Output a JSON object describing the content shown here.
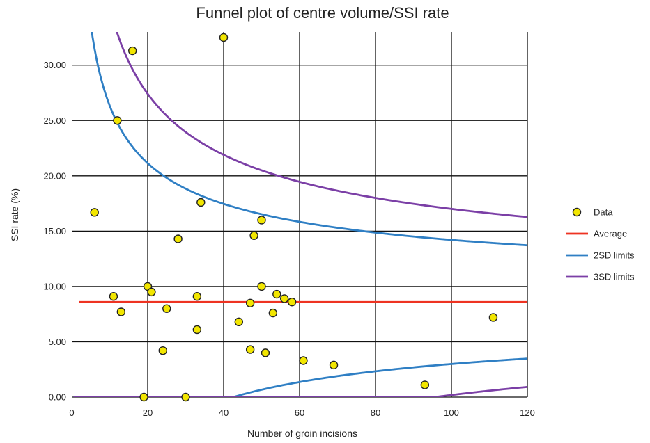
{
  "chart_data": {
    "type": "scatter",
    "title": "Funnel plot of centre volume/SSI rate",
    "xlabel": "Number of groin incisions",
    "ylabel": "SSI rate (%)",
    "xlim": [
      0,
      120
    ],
    "ylim": [
      0,
      33
    ],
    "x_ticks": [
      0,
      20,
      40,
      60,
      80,
      100,
      120
    ],
    "x_tick_labels": [
      "0",
      "20",
      "40",
      "60",
      "80",
      "100",
      "120"
    ],
    "y_ticks": [
      0,
      5,
      10,
      15,
      20,
      25,
      30
    ],
    "y_tick_labels": [
      "0.00",
      "5.00",
      "10.00",
      "15.00",
      "20.00",
      "25.00",
      "30.00"
    ],
    "grid": true,
    "legend_position": "right",
    "average": 8.6,
    "series": [
      {
        "name": "Data",
        "kind": "points",
        "color": "#f2e600",
        "stroke": "#222222",
        "points": [
          [
            6,
            16.7
          ],
          [
            11,
            9.1
          ],
          [
            12,
            25.0
          ],
          [
            13,
            7.7
          ],
          [
            16,
            31.3
          ],
          [
            19,
            0.0
          ],
          [
            20,
            10.0
          ],
          [
            21,
            9.5
          ],
          [
            24,
            4.2
          ],
          [
            25,
            8.0
          ],
          [
            28,
            14.3
          ],
          [
            30,
            0.0
          ],
          [
            33,
            9.1
          ],
          [
            33,
            6.1
          ],
          [
            34,
            17.6
          ],
          [
            40,
            32.5
          ],
          [
            44,
            6.8
          ],
          [
            47,
            8.5
          ],
          [
            47,
            4.3
          ],
          [
            48,
            14.6
          ],
          [
            50,
            16.0
          ],
          [
            50,
            10.0
          ],
          [
            51,
            4.0
          ],
          [
            53,
            7.6
          ],
          [
            54,
            9.3
          ],
          [
            56,
            8.9
          ],
          [
            58,
            8.6
          ],
          [
            61,
            3.3
          ],
          [
            69,
            2.9
          ],
          [
            93,
            1.1
          ],
          [
            111,
            7.2
          ]
        ]
      },
      {
        "name": "Average",
        "kind": "average",
        "color": "#ee3322"
      },
      {
        "name": "2SD limits",
        "kind": "limit",
        "z": 2,
        "color": "#2f7fc4"
      },
      {
        "name": "3SD limits",
        "kind": "limit",
        "z": 3,
        "color": "#7b3fa6"
      }
    ]
  }
}
